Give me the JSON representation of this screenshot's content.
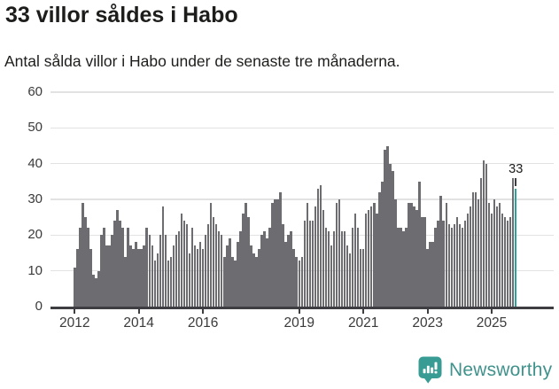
{
  "header": {
    "title": "33 villor såldes i Habo",
    "subtitle": "Antal sålda villor i Habo under de senaste tre månaderna."
  },
  "chart_data": {
    "type": "bar",
    "title": "33 villor såldes i Habo",
    "subtitle": "Antal sålda villor i Habo under de senaste tre månaderna.",
    "x_start": "2012-01",
    "x_end": "2025-10",
    "x_frequency": "monthly",
    "values": [
      11,
      16,
      22,
      29,
      25,
      22,
      16,
      9,
      8,
      10,
      20,
      22,
      17,
      17,
      20,
      24,
      27,
      24,
      22,
      14,
      22,
      17,
      16,
      18,
      16,
      16,
      17,
      22,
      20,
      17,
      13,
      15,
      20,
      28,
      20,
      13,
      14,
      17,
      20,
      21,
      26,
      24,
      23,
      15,
      22,
      17,
      16,
      18,
      16,
      20,
      23,
      29,
      25,
      23,
      21,
      20,
      14,
      17,
      19,
      14,
      13,
      18,
      21,
      26,
      29,
      25,
      17,
      15,
      14,
      16,
      20,
      21,
      19,
      22,
      29,
      30,
      30,
      32,
      23,
      18,
      20,
      21,
      16,
      14,
      13,
      14,
      24,
      29,
      24,
      24,
      28,
      33,
      34,
      27,
      22,
      21,
      17,
      21,
      29,
      30,
      21,
      21,
      17,
      15,
      22,
      26,
      22,
      16,
      16,
      26,
      27,
      28,
      29,
      26,
      32,
      35,
      44,
      45,
      40,
      38,
      30,
      22,
      22,
      21,
      22,
      29,
      29,
      28,
      27,
      35,
      25,
      25,
      16,
      18,
      18,
      22,
      24,
      31,
      24,
      29,
      23,
      22,
      23,
      25,
      23,
      22,
      24,
      26,
      28,
      32,
      32,
      30,
      36,
      41,
      40,
      29,
      26,
      30,
      28,
      29,
      26,
      25,
      24,
      25,
      36,
      33
    ],
    "highlight_index": 165,
    "highlight_value": 33,
    "highlight_label": "33",
    "ylim": [
      0,
      60
    ],
    "yticks": [
      0,
      10,
      20,
      30,
      40,
      50,
      60
    ],
    "xticks": [
      2012,
      2014,
      2016,
      2019,
      2021,
      2023,
      2025
    ],
    "grid": true,
    "legend_position": "none",
    "bar_color": "#6c6c71",
    "highlight_color": "#2aa39c",
    "gridline_color": "#e2e2e2",
    "axis_color": "#3e3e42"
  },
  "footer": {
    "brand": "Newsworthy",
    "brand_color": "#40928c",
    "logo_icon": "newsworthy-speech-bubble-chart-icon",
    "logo_color": "#389c95"
  }
}
